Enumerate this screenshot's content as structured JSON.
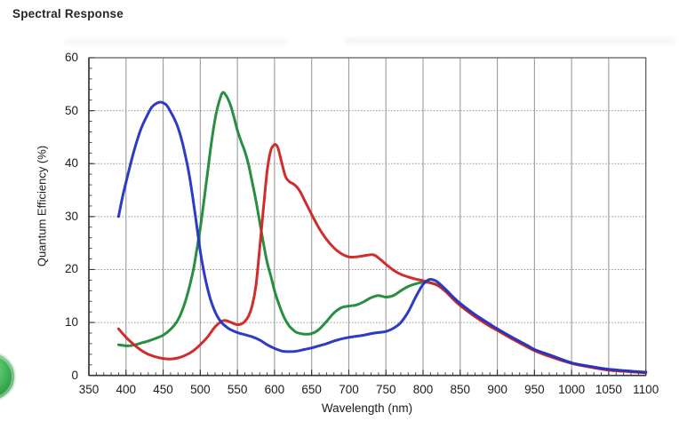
{
  "page": {
    "heading": "Spectral Response"
  },
  "chart_data": {
    "type": "line",
    "title": "Spectral Response",
    "xlabel": "Wavelength (nm)",
    "ylabel": "Quantum Efficiency (%)",
    "xlim": [
      350,
      1100
    ],
    "ylim": [
      0,
      60
    ],
    "x_ticks": [
      350,
      400,
      450,
      500,
      550,
      600,
      650,
      700,
      750,
      800,
      850,
      900,
      950,
      1000,
      1050,
      1100
    ],
    "y_ticks": [
      0,
      10,
      20,
      30,
      40,
      50,
      60
    ],
    "x_minor_step": 10,
    "y_minor_step": 2,
    "grid": true,
    "legend": "none",
    "frame_color": "#555555",
    "grid_color": "#9a9a9a",
    "series": [
      {
        "name": "green-channel",
        "color": "#1f8a38",
        "points": [
          [
            390,
            5.8
          ],
          [
            400,
            5.6
          ],
          [
            410,
            5.7
          ],
          [
            420,
            6.1
          ],
          [
            430,
            6.5
          ],
          [
            440,
            7.0
          ],
          [
            450,
            7.6
          ],
          [
            460,
            8.7
          ],
          [
            470,
            10.5
          ],
          [
            480,
            14.0
          ],
          [
            490,
            19.5
          ],
          [
            495,
            23.5
          ],
          [
            500,
            27.8
          ],
          [
            505,
            33.0
          ],
          [
            510,
            38.5
          ],
          [
            515,
            44.0
          ],
          [
            520,
            48.5
          ],
          [
            525,
            51.5
          ],
          [
            530,
            53.4
          ],
          [
            535,
            52.8
          ],
          [
            540,
            51.3
          ],
          [
            545,
            49.0
          ],
          [
            550,
            46.3
          ],
          [
            555,
            44.2
          ],
          [
            560,
            42.3
          ],
          [
            565,
            39.8
          ],
          [
            570,
            36.5
          ],
          [
            575,
            33.0
          ],
          [
            580,
            29.0
          ],
          [
            585,
            25.0
          ],
          [
            590,
            21.4
          ],
          [
            595,
            18.8
          ],
          [
            600,
            16.0
          ],
          [
            605,
            13.8
          ],
          [
            610,
            11.9
          ],
          [
            615,
            10.4
          ],
          [
            620,
            9.3
          ],
          [
            625,
            8.6
          ],
          [
            630,
            8.1
          ],
          [
            640,
            7.8
          ],
          [
            650,
            7.9
          ],
          [
            660,
            8.7
          ],
          [
            670,
            10.2
          ],
          [
            680,
            11.8
          ],
          [
            690,
            12.8
          ],
          [
            700,
            13.1
          ],
          [
            710,
            13.3
          ],
          [
            720,
            13.9
          ],
          [
            730,
            14.7
          ],
          [
            740,
            15.1
          ],
          [
            750,
            14.8
          ],
          [
            760,
            15.1
          ],
          [
            770,
            16.0
          ],
          [
            780,
            16.8
          ],
          [
            790,
            17.3
          ],
          [
            800,
            17.6
          ],
          [
            810,
            17.5
          ],
          [
            820,
            17.0
          ],
          [
            830,
            15.9
          ],
          [
            840,
            14.6
          ],
          [
            850,
            13.3
          ],
          [
            870,
            11.2
          ],
          [
            890,
            9.4
          ],
          [
            900,
            8.6
          ],
          [
            920,
            7.0
          ],
          [
            940,
            5.5
          ],
          [
            950,
            4.8
          ],
          [
            970,
            3.7
          ],
          [
            1000,
            2.3
          ],
          [
            1030,
            1.5
          ],
          [
            1050,
            1.05
          ],
          [
            1080,
            0.7
          ],
          [
            1100,
            0.55
          ]
        ]
      },
      {
        "name": "red-channel",
        "color": "#cf2424",
        "points": [
          [
            390,
            8.8
          ],
          [
            400,
            7.2
          ],
          [
            410,
            5.9
          ],
          [
            420,
            4.8
          ],
          [
            430,
            4.0
          ],
          [
            440,
            3.5
          ],
          [
            450,
            3.2
          ],
          [
            460,
            3.1
          ],
          [
            470,
            3.3
          ],
          [
            480,
            3.8
          ],
          [
            490,
            4.6
          ],
          [
            500,
            5.8
          ],
          [
            510,
            7.3
          ],
          [
            520,
            9.2
          ],
          [
            530,
            10.3
          ],
          [
            535,
            10.35
          ],
          [
            540,
            10.1
          ],
          [
            545,
            9.8
          ],
          [
            550,
            9.6
          ],
          [
            555,
            9.7
          ],
          [
            560,
            10.2
          ],
          [
            565,
            11.2
          ],
          [
            570,
            13.2
          ],
          [
            575,
            17.0
          ],
          [
            580,
            24.0
          ],
          [
            585,
            31.5
          ],
          [
            590,
            38.5
          ],
          [
            595,
            42.5
          ],
          [
            600,
            43.6
          ],
          [
            603,
            43.4
          ],
          [
            605,
            42.8
          ],
          [
            610,
            40.0
          ],
          [
            615,
            37.5
          ],
          [
            620,
            36.6
          ],
          [
            625,
            36.2
          ],
          [
            630,
            35.6
          ],
          [
            635,
            34.6
          ],
          [
            640,
            33.2
          ],
          [
            650,
            30.4
          ],
          [
            660,
            27.8
          ],
          [
            670,
            25.7
          ],
          [
            680,
            24.1
          ],
          [
            690,
            23.0
          ],
          [
            700,
            22.4
          ],
          [
            710,
            22.4
          ],
          [
            720,
            22.6
          ],
          [
            730,
            22.8
          ],
          [
            735,
            22.7
          ],
          [
            740,
            22.2
          ],
          [
            750,
            21.0
          ],
          [
            760,
            19.9
          ],
          [
            770,
            19.1
          ],
          [
            780,
            18.6
          ],
          [
            790,
            18.2
          ],
          [
            800,
            17.9
          ],
          [
            810,
            17.5
          ],
          [
            820,
            17.0
          ],
          [
            830,
            15.9
          ],
          [
            840,
            14.5
          ],
          [
            850,
            13.2
          ],
          [
            870,
            11.1
          ],
          [
            890,
            9.3
          ],
          [
            900,
            8.5
          ],
          [
            920,
            6.9
          ],
          [
            940,
            5.4
          ],
          [
            950,
            4.7
          ],
          [
            970,
            3.6
          ],
          [
            1000,
            2.3
          ],
          [
            1030,
            1.45
          ],
          [
            1050,
            1.0
          ],
          [
            1080,
            0.7
          ],
          [
            1100,
            0.5
          ]
        ]
      },
      {
        "name": "blue-channel",
        "color": "#2433c4",
        "points": [
          [
            390,
            30.0
          ],
          [
            395,
            33.5
          ],
          [
            400,
            36.5
          ],
          [
            410,
            42.0
          ],
          [
            420,
            46.5
          ],
          [
            430,
            49.5
          ],
          [
            435,
            50.7
          ],
          [
            440,
            51.3
          ],
          [
            445,
            51.6
          ],
          [
            450,
            51.5
          ],
          [
            455,
            51.0
          ],
          [
            460,
            49.8
          ],
          [
            465,
            48.5
          ],
          [
            470,
            46.8
          ],
          [
            475,
            44.5
          ],
          [
            480,
            41.5
          ],
          [
            485,
            38.0
          ],
          [
            490,
            33.5
          ],
          [
            495,
            28.5
          ],
          [
            500,
            23.5
          ],
          [
            505,
            19.5
          ],
          [
            510,
            16.3
          ],
          [
            515,
            13.8
          ],
          [
            520,
            12.0
          ],
          [
            525,
            10.7
          ],
          [
            530,
            9.8
          ],
          [
            535,
            9.2
          ],
          [
            540,
            8.7
          ],
          [
            550,
            8.1
          ],
          [
            560,
            7.7
          ],
          [
            570,
            7.3
          ],
          [
            580,
            6.7
          ],
          [
            590,
            5.8
          ],
          [
            600,
            5.1
          ],
          [
            610,
            4.6
          ],
          [
            620,
            4.5
          ],
          [
            630,
            4.6
          ],
          [
            640,
            4.9
          ],
          [
            650,
            5.2
          ],
          [
            660,
            5.6
          ],
          [
            670,
            6.0
          ],
          [
            680,
            6.5
          ],
          [
            690,
            6.9
          ],
          [
            700,
            7.2
          ],
          [
            710,
            7.4
          ],
          [
            720,
            7.6
          ],
          [
            730,
            7.9
          ],
          [
            740,
            8.1
          ],
          [
            750,
            8.3
          ],
          [
            760,
            8.9
          ],
          [
            770,
            10.0
          ],
          [
            780,
            12.0
          ],
          [
            790,
            14.8
          ],
          [
            800,
            17.2
          ],
          [
            808,
            18.1
          ],
          [
            815,
            18.0
          ],
          [
            820,
            17.6
          ],
          [
            830,
            16.3
          ],
          [
            840,
            14.9
          ],
          [
            850,
            13.6
          ],
          [
            870,
            11.5
          ],
          [
            890,
            9.7
          ],
          [
            900,
            8.8
          ],
          [
            920,
            7.2
          ],
          [
            940,
            5.7
          ],
          [
            950,
            4.9
          ],
          [
            970,
            3.9
          ],
          [
            1000,
            2.4
          ],
          [
            1030,
            1.6
          ],
          [
            1050,
            1.15
          ],
          [
            1080,
            0.8
          ],
          [
            1100,
            0.6
          ]
        ]
      }
    ]
  }
}
